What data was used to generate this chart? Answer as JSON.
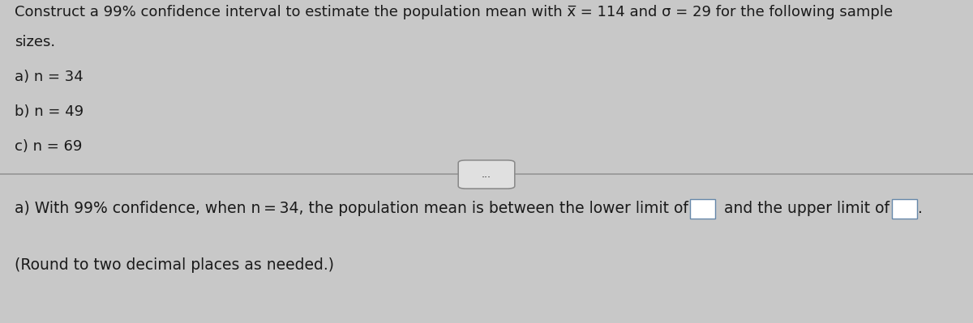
{
  "title_line1": "Construct a 99% confidence interval to estimate the population mean with x̅ = 114 and σ = 29 for the following sample",
  "title_line2": "sizes.",
  "item_a": "a) n = 34",
  "item_b": "b) n = 49",
  "item_c": "c) n = 69",
  "divider_label": "...",
  "answer_line1_part1": "a) With 99% confidence, when n = 34, the population mean is between the lower limit of",
  "answer_line1_part2": "and the upper limit of",
  "answer_line1_end": ".",
  "answer_line2": "(Round to two decimal places as needed.)",
  "bg_top_color": "#c8c8c8",
  "bg_bottom_color": "#c0c0c8",
  "text_color": "#1a1a1a",
  "box_color": "#ffffff",
  "box_edge_color": "#6688aa",
  "divider_color": "#999999",
  "btn_bg": "#e0e0e0",
  "btn_edge": "#888888",
  "font_size_main": 13.0,
  "font_size_items": 13.0,
  "font_size_answer": 13.5,
  "font_size_btn": 9
}
